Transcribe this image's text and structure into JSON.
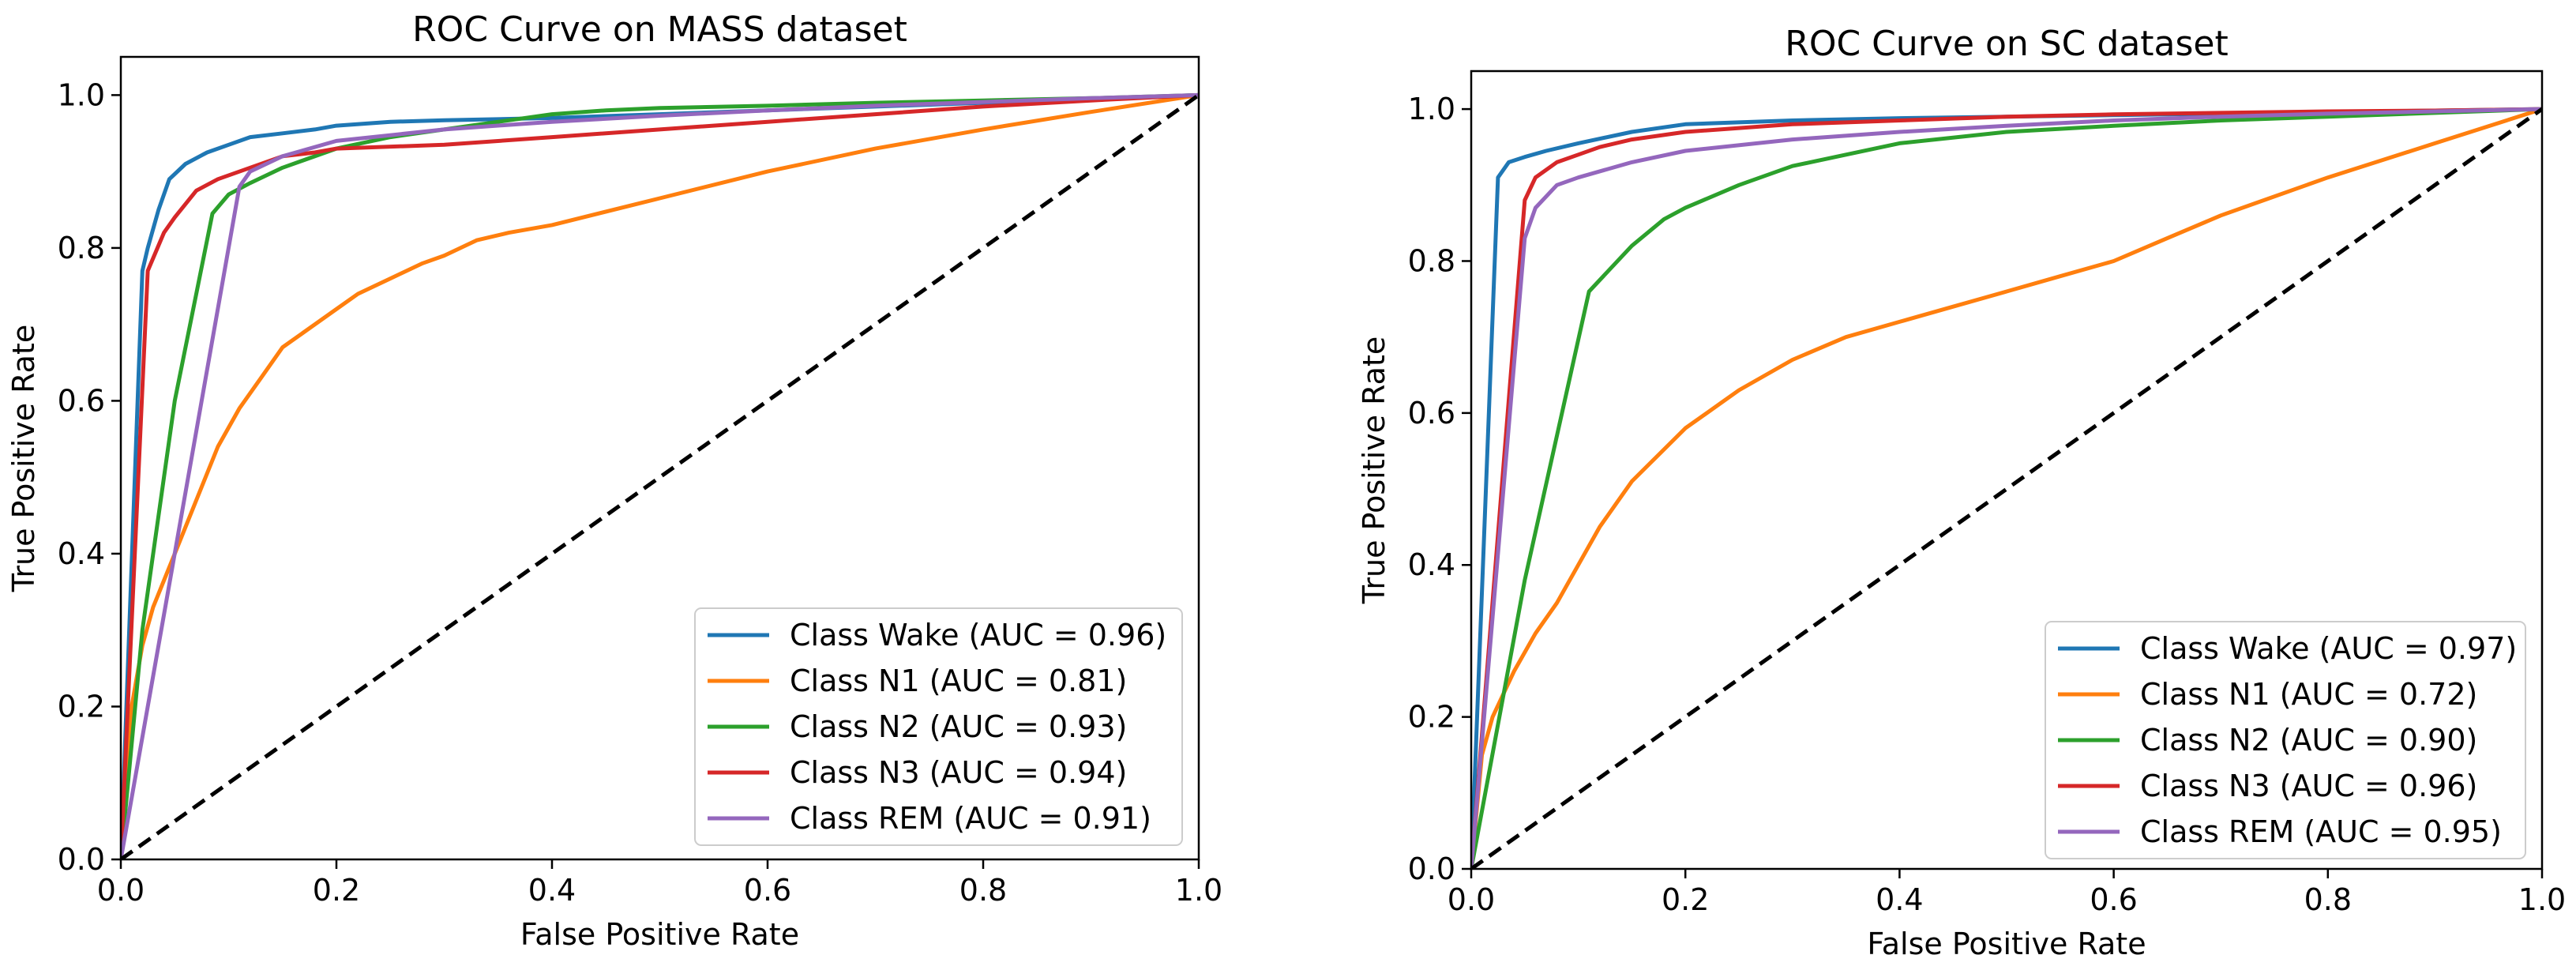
{
  "chart_data": [
    {
      "type": "line",
      "title": "ROC Curve on MASS dataset",
      "xlabel": "False Positive Rate",
      "ylabel": "True Positive Rate",
      "xlim": [
        0.0,
        1.0
      ],
      "ylim": [
        0.0,
        1.05
      ],
      "xticks": [
        0.0,
        0.2,
        0.4,
        0.6,
        0.8,
        1.0
      ],
      "yticks": [
        0.0,
        0.2,
        0.4,
        0.6,
        0.8,
        1.0
      ],
      "xtick_labels": [
        "0.0",
        "0.2",
        "0.4",
        "0.6",
        "0.8",
        "1.0"
      ],
      "ytick_labels": [
        "0.0",
        "0.2",
        "0.4",
        "0.6",
        "0.8",
        "1.0"
      ],
      "grid": false,
      "legend_position": "lower-right",
      "series": [
        {
          "name": "Class Wake (AUC = 0.96)",
          "color": "#1f77b4",
          "x": [
            0,
            0.02,
            0.025,
            0.035,
            0.045,
            0.06,
            0.08,
            0.1,
            0.12,
            0.15,
            0.18,
            0.2,
            0.25,
            0.3,
            0.4,
            0.5,
            0.6,
            0.7,
            0.8,
            0.9,
            1.0
          ],
          "y": [
            0,
            0.77,
            0.8,
            0.85,
            0.89,
            0.91,
            0.925,
            0.935,
            0.945,
            0.95,
            0.955,
            0.96,
            0.965,
            0.967,
            0.97,
            0.975,
            0.98,
            0.985,
            0.99,
            0.995,
            1.0
          ]
        },
        {
          "name": "Class N1 (AUC = 0.81)",
          "color": "#ff7f0e",
          "x": [
            0,
            0.01,
            0.02,
            0.03,
            0.05,
            0.07,
            0.09,
            0.11,
            0.13,
            0.15,
            0.18,
            0.2,
            0.22,
            0.25,
            0.28,
            0.3,
            0.33,
            0.36,
            0.4,
            0.5,
            0.6,
            0.7,
            0.8,
            0.9,
            1.0
          ],
          "y": [
            0,
            0.2,
            0.28,
            0.33,
            0.4,
            0.47,
            0.54,
            0.59,
            0.63,
            0.67,
            0.7,
            0.72,
            0.74,
            0.76,
            0.78,
            0.79,
            0.81,
            0.82,
            0.83,
            0.865,
            0.9,
            0.93,
            0.955,
            0.978,
            1.0
          ]
        },
        {
          "name": "Class N2 (AUC = 0.93)",
          "color": "#2ca02c",
          "x": [
            0,
            0.02,
            0.05,
            0.085,
            0.1,
            0.12,
            0.15,
            0.2,
            0.25,
            0.3,
            0.35,
            0.4,
            0.45,
            0.5,
            0.6,
            0.7,
            0.8,
            0.9,
            1.0
          ],
          "y": [
            0,
            0.3,
            0.6,
            0.845,
            0.87,
            0.885,
            0.905,
            0.93,
            0.945,
            0.955,
            0.965,
            0.975,
            0.98,
            0.983,
            0.986,
            0.99,
            0.993,
            0.996,
            1.0
          ]
        },
        {
          "name": "Class N3 (AUC = 0.94)",
          "color": "#d62728",
          "x": [
            0,
            0.025,
            0.04,
            0.05,
            0.07,
            0.09,
            0.12,
            0.15,
            0.18,
            0.2,
            0.3,
            0.4,
            0.5,
            0.6,
            0.7,
            0.8,
            0.9,
            1.0
          ],
          "y": [
            0,
            0.77,
            0.82,
            0.84,
            0.875,
            0.89,
            0.905,
            0.92,
            0.925,
            0.93,
            0.935,
            0.945,
            0.955,
            0.965,
            0.975,
            0.985,
            0.993,
            1.0
          ]
        },
        {
          "name": "Class REM (AUC = 0.91)",
          "color": "#9467bd",
          "x": [
            0,
            0.11,
            0.12,
            0.15,
            0.2,
            0.3,
            0.4,
            0.5,
            0.6,
            0.7,
            0.8,
            0.9,
            1.0
          ],
          "y": [
            0,
            0.88,
            0.9,
            0.92,
            0.94,
            0.955,
            0.965,
            0.973,
            0.98,
            0.986,
            0.991,
            0.996,
            1.0
          ]
        }
      ],
      "reference_line": {
        "x": [
          0,
          1
        ],
        "y": [
          0,
          1
        ],
        "style": "dashed",
        "color": "#000000"
      }
    },
    {
      "type": "line",
      "title": "ROC Curve on SC dataset",
      "xlabel": "False Positive Rate",
      "ylabel": "True Positive Rate",
      "xlim": [
        0.0,
        1.0
      ],
      "ylim": [
        0.0,
        1.05
      ],
      "xticks": [
        0.0,
        0.2,
        0.4,
        0.6,
        0.8,
        1.0
      ],
      "yticks": [
        0.0,
        0.2,
        0.4,
        0.6,
        0.8,
        1.0
      ],
      "xtick_labels": [
        "0.0",
        "0.2",
        "0.4",
        "0.6",
        "0.8",
        "1.0"
      ],
      "ytick_labels": [
        "0.0",
        "0.2",
        "0.4",
        "0.6",
        "0.8",
        "1.0"
      ],
      "grid": false,
      "legend_position": "lower-right",
      "series": [
        {
          "name": "Class Wake (AUC = 0.97)",
          "color": "#1f77b4",
          "x": [
            0,
            0.025,
            0.035,
            0.05,
            0.07,
            0.1,
            0.15,
            0.2,
            0.3,
            0.4,
            0.5,
            0.6,
            0.7,
            0.8,
            0.9,
            1.0
          ],
          "y": [
            0,
            0.91,
            0.93,
            0.937,
            0.945,
            0.955,
            0.97,
            0.98,
            0.985,
            0.988,
            0.99,
            0.992,
            0.994,
            0.996,
            0.998,
            1.0
          ]
        },
        {
          "name": "Class N1 (AUC = 0.72)",
          "color": "#ff7f0e",
          "x": [
            0,
            0.01,
            0.02,
            0.04,
            0.06,
            0.08,
            0.1,
            0.12,
            0.15,
            0.2,
            0.25,
            0.3,
            0.35,
            0.4,
            0.45,
            0.5,
            0.55,
            0.6,
            0.65,
            0.7,
            0.8,
            0.9,
            1.0
          ],
          "y": [
            0,
            0.15,
            0.2,
            0.26,
            0.31,
            0.35,
            0.4,
            0.45,
            0.51,
            0.58,
            0.63,
            0.67,
            0.7,
            0.72,
            0.74,
            0.76,
            0.78,
            0.8,
            0.83,
            0.86,
            0.91,
            0.955,
            1.0
          ]
        },
        {
          "name": "Class N2 (AUC = 0.90)",
          "color": "#2ca02c",
          "x": [
            0,
            0.05,
            0.11,
            0.13,
            0.15,
            0.18,
            0.2,
            0.25,
            0.3,
            0.35,
            0.4,
            0.5,
            0.6,
            0.7,
            0.8,
            0.9,
            1.0
          ],
          "y": [
            0,
            0.38,
            0.76,
            0.79,
            0.82,
            0.855,
            0.87,
            0.9,
            0.925,
            0.94,
            0.955,
            0.97,
            0.978,
            0.985,
            0.99,
            0.995,
            1.0
          ]
        },
        {
          "name": "Class N3 (AUC = 0.96)",
          "color": "#d62728",
          "x": [
            0,
            0.05,
            0.06,
            0.08,
            0.1,
            0.12,
            0.15,
            0.2,
            0.3,
            0.4,
            0.5,
            0.6,
            0.7,
            0.8,
            0.9,
            1.0
          ],
          "y": [
            0,
            0.88,
            0.91,
            0.93,
            0.94,
            0.95,
            0.96,
            0.97,
            0.98,
            0.985,
            0.99,
            0.993,
            0.995,
            0.997,
            0.998,
            1.0
          ]
        },
        {
          "name": "Class REM (AUC = 0.95)",
          "color": "#9467bd",
          "x": [
            0,
            0.05,
            0.06,
            0.08,
            0.1,
            0.15,
            0.2,
            0.3,
            0.4,
            0.5,
            0.6,
            0.7,
            0.8,
            0.9,
            1.0
          ],
          "y": [
            0,
            0.83,
            0.87,
            0.9,
            0.91,
            0.93,
            0.945,
            0.96,
            0.97,
            0.978,
            0.985,
            0.99,
            0.994,
            0.997,
            1.0
          ]
        }
      ],
      "reference_line": {
        "x": [
          0,
          1
        ],
        "y": [
          0,
          1
        ],
        "style": "dashed",
        "color": "#000000"
      }
    }
  ]
}
